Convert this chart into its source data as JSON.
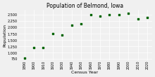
{
  "title": "Population of Belmond, Iowa",
  "xlabel": "Census Year",
  "ylabel": "Population",
  "years": [
    1890,
    1900,
    1910,
    1920,
    1930,
    1940,
    1950,
    1960,
    1970,
    1980,
    1990,
    2000,
    2010,
    2020
  ],
  "population": [
    800,
    1200,
    1200,
    1750,
    1700,
    2100,
    2150,
    2500,
    2450,
    2500,
    2500,
    2550,
    2350,
    2400
  ],
  "marker_color": "#006400",
  "marker": "s",
  "marker_size": 4,
  "xlim": [
    1883,
    2025
  ],
  "ylim": [
    700,
    2700
  ],
  "yticks": [
    750,
    1000,
    1250,
    1500,
    1750,
    2000,
    2250,
    2500
  ],
  "xticks": [
    1890,
    1900,
    1910,
    1920,
    1930,
    1940,
    1950,
    1960,
    1970,
    1980,
    1990,
    2000,
    2010,
    2020
  ],
  "background_color": "#f0f0f0",
  "grid_color": "white",
  "title_fontsize": 5.5,
  "axis_label_fontsize": 4.5,
  "tick_fontsize": 3.5
}
